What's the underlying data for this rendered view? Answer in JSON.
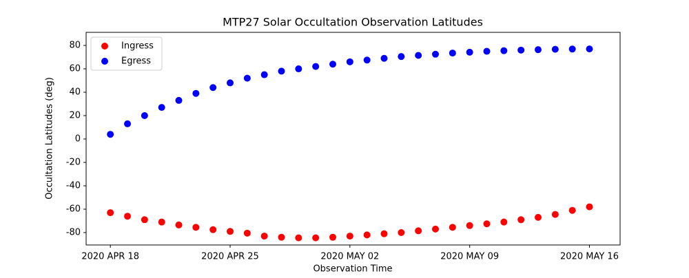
{
  "chart_data": {
    "type": "scatter",
    "title": "MTP27 Solar Occultation Observation Latitudes",
    "x_label": "Observation Time",
    "y_label": "Occultation Latitudes (deg)",
    "x": [
      "2020-04-18",
      "2020-04-19",
      "2020-04-20",
      "2020-04-21",
      "2020-04-22",
      "2020-04-23",
      "2020-04-24",
      "2020-04-25",
      "2020-04-26",
      "2020-04-27",
      "2020-04-28",
      "2020-04-29",
      "2020-04-30",
      "2020-05-01",
      "2020-05-02",
      "2020-05-03",
      "2020-05-04",
      "2020-05-05",
      "2020-05-06",
      "2020-05-07",
      "2020-05-08",
      "2020-05-09",
      "2020-05-10",
      "2020-05-11",
      "2020-05-12",
      "2020-05-13",
      "2020-05-14",
      "2020-05-15",
      "2020-05-16"
    ],
    "series": [
      {
        "name": "Ingress",
        "color": "#ff0000",
        "values": [
          -63,
          -66,
          -69,
          -71,
          -73.5,
          -75.5,
          -77.5,
          -79,
          -80.5,
          -83,
          -84,
          -84.5,
          -84.5,
          -84,
          -83,
          -82,
          -81,
          -80,
          -78.5,
          -77,
          -75.5,
          -74,
          -72.5,
          -71,
          -69,
          -67,
          -64.5,
          -61,
          -58
        ]
      },
      {
        "name": "Egress",
        "color": "#0000ff",
        "values": [
          4,
          13,
          20,
          27,
          33,
          39,
          44,
          48,
          52,
          55,
          58,
          60,
          62,
          64,
          66,
          67.5,
          69,
          70.5,
          71.5,
          72.5,
          73.5,
          74.2,
          75,
          75.5,
          76,
          76.4,
          76.7,
          76.9,
          77
        ]
      }
    ],
    "xlim": [
      "2020-04-16T14:00",
      "2020-05-17T19:00"
    ],
    "xticks": [
      {
        "value": "2020-04-18",
        "label": "2020 APR 18"
      },
      {
        "value": "2020-04-25",
        "label": "2020 APR 25"
      },
      {
        "value": "2020-05-02",
        "label": "2020 MAY 02"
      },
      {
        "value": "2020-05-09",
        "label": "2020 MAY 09"
      },
      {
        "value": "2020-05-16",
        "label": "2020 MAY 16"
      }
    ],
    "ylim": [
      -90.6,
      91.2
    ],
    "yticks": [
      -80,
      -60,
      -40,
      -20,
      0,
      20,
      40,
      60,
      80
    ],
    "legend": "upper left",
    "grid": false
  }
}
